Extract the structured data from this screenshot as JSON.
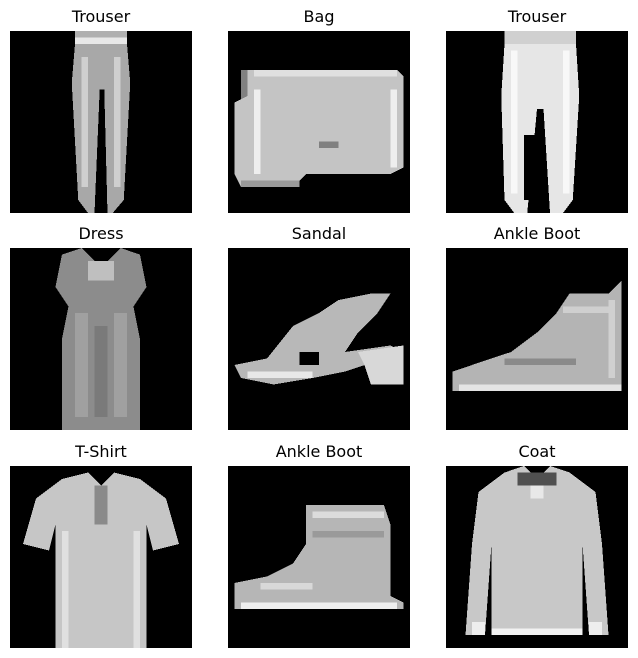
{
  "grid": {
    "rows": 3,
    "cols": 3,
    "background_color": "#000000",
    "foreground_color": "#c8c8c8",
    "items": [
      {
        "title": "Trouser",
        "silhouette": "trouser"
      },
      {
        "title": "Bag",
        "silhouette": "bag"
      },
      {
        "title": "Trouser",
        "silhouette": "trouser"
      },
      {
        "title": "Dress",
        "silhouette": "dress"
      },
      {
        "title": "Sandal",
        "silhouette": "sandal"
      },
      {
        "title": "Ankle Boot",
        "silhouette": "ankle-boot"
      },
      {
        "title": "T-Shirt",
        "silhouette": "t-shirt"
      },
      {
        "title": "Ankle Boot",
        "silhouette": "ankle-boot"
      },
      {
        "title": "Coat",
        "silhouette": "coat"
      }
    ]
  }
}
